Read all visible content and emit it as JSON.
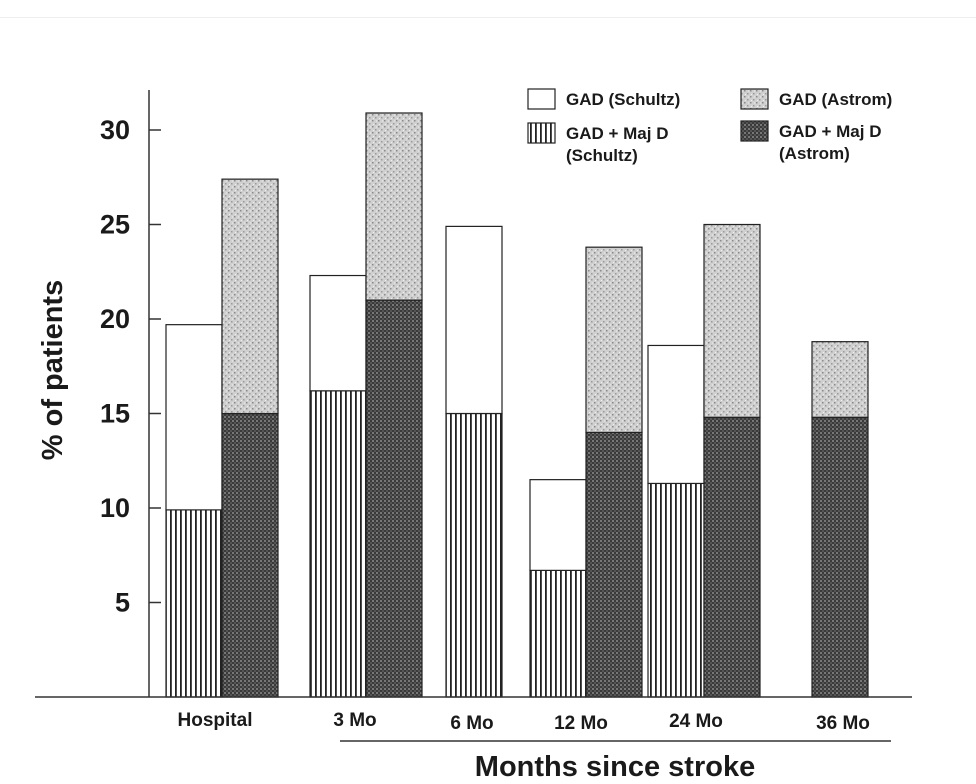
{
  "chart_data": {
    "type": "bar",
    "subtype": "grouped-stacked",
    "title": "",
    "xlabel": "Months since stroke",
    "ylabel": "% of patients",
    "ylim": [
      0,
      31
    ],
    "yticks": [
      5,
      10,
      15,
      20,
      25,
      30
    ],
    "grid": false,
    "legend_position": "top-right",
    "categories": [
      "Hospital",
      "3 Mo",
      "6 Mo",
      "12 Mo",
      "24 Mo",
      "36 Mo"
    ],
    "legend": [
      {
        "key": "gad_schultz",
        "label_lines": [
          "GAD (Schultz)"
        ],
        "pattern": "white"
      },
      {
        "key": "gad_astrom",
        "label_lines": [
          "GAD (Astrom)"
        ],
        "pattern": "light-stipple"
      },
      {
        "key": "gad_majd_schultz",
        "label_lines": [
          "GAD + Maj D",
          "(Schultz)"
        ],
        "pattern": "vertical-lines"
      },
      {
        "key": "gad_majd_astrom",
        "label_lines": [
          "GAD + Maj D",
          "(Astrom)"
        ],
        "pattern": "dark-checker"
      }
    ],
    "schultz": {
      "gad_plus_majd": [
        9.9,
        16.2,
        15.0,
        6.7,
        11.3,
        null
      ],
      "gad_total": [
        19.7,
        22.3,
        24.9,
        11.5,
        18.6,
        null
      ]
    },
    "astrom": {
      "gad_plus_majd": [
        15.0,
        21.0,
        null,
        14.0,
        14.8,
        14.8
      ],
      "gad_total": [
        27.4,
        30.9,
        null,
        23.8,
        25.0,
        18.8
      ]
    }
  }
}
